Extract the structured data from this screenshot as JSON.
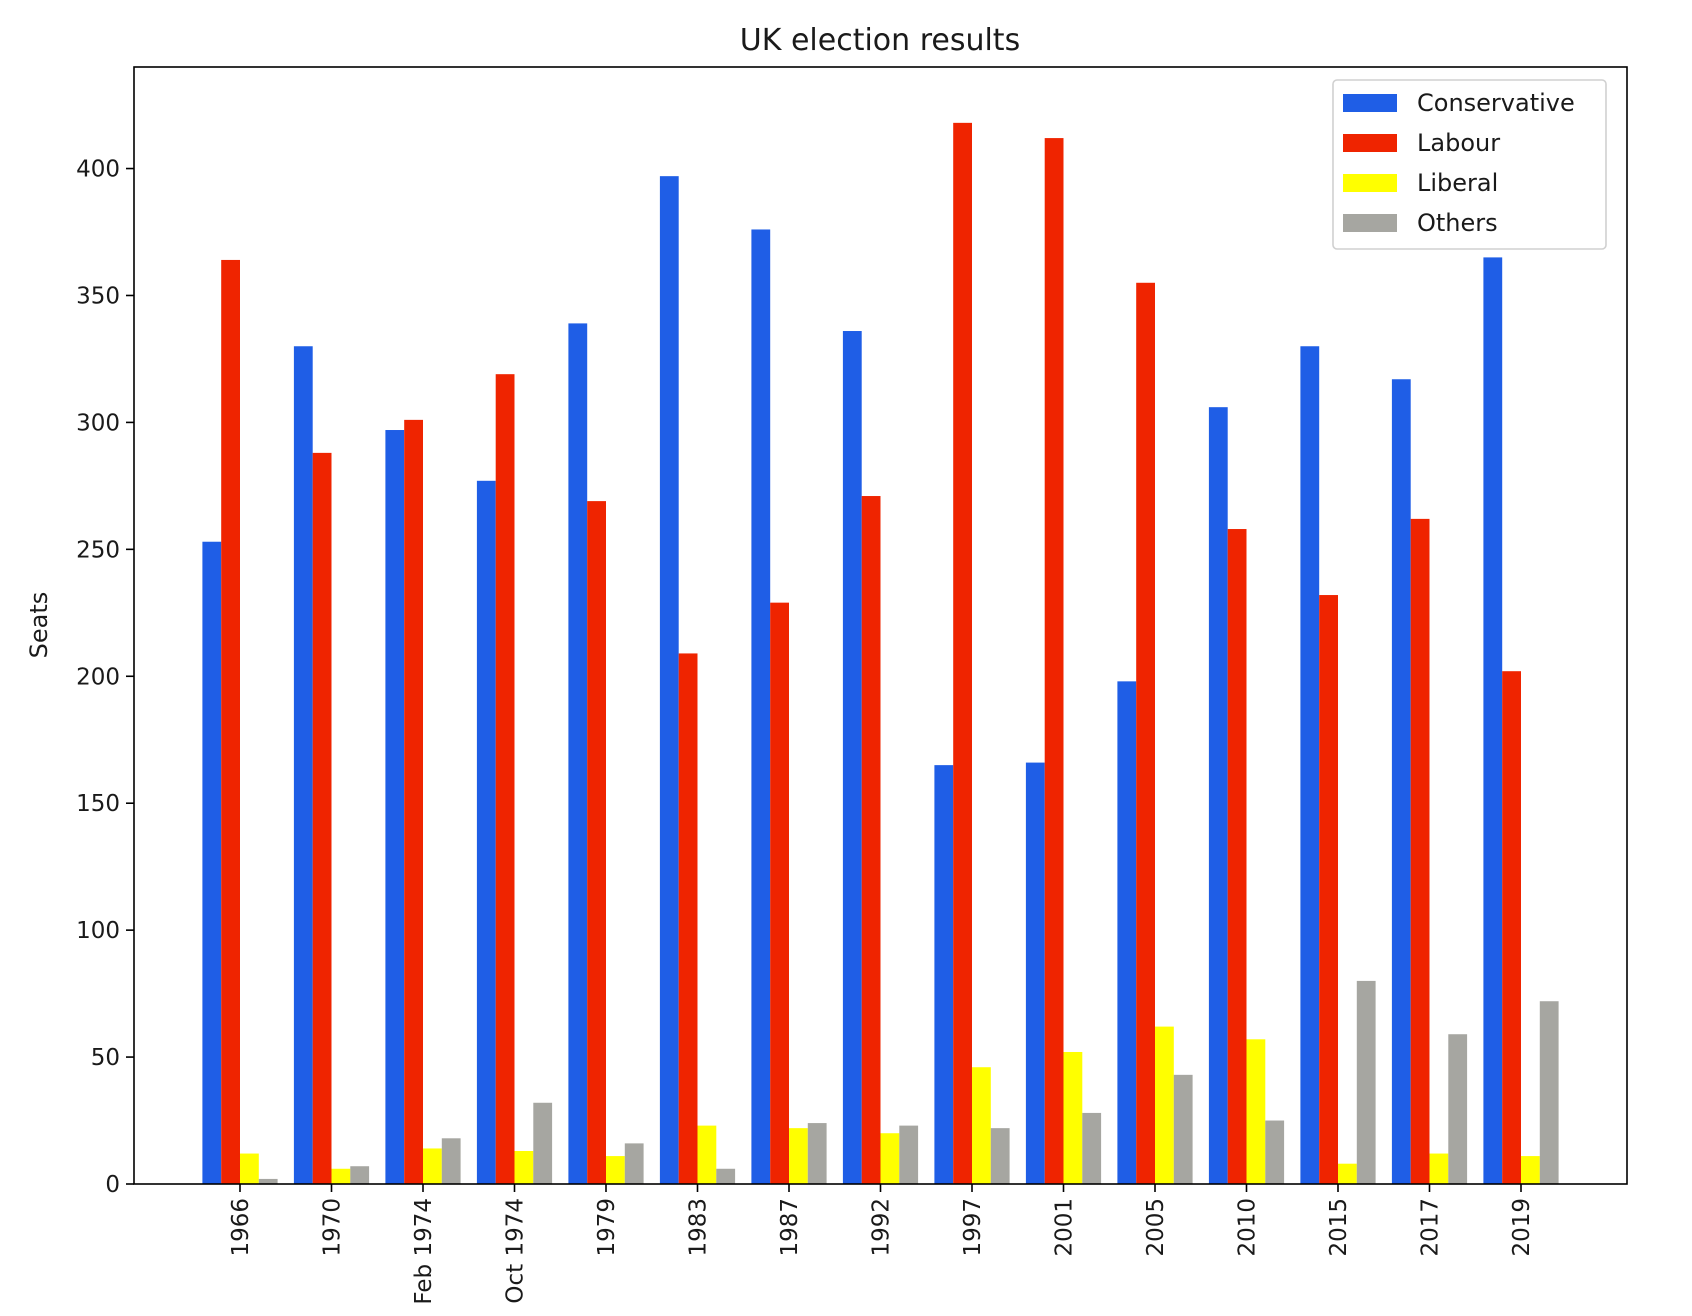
{
  "chart_data": {
    "type": "bar",
    "title": "UK election results",
    "xlabel": "",
    "ylabel": "Seats",
    "ylim": [
      0,
      440
    ],
    "yticks": [
      0,
      50,
      100,
      150,
      200,
      250,
      300,
      350,
      400
    ],
    "grid": false,
    "legend_position": "top-right",
    "categories": [
      "1966",
      "1970",
      "Feb 1974",
      "Oct 1974",
      "1979",
      "1983",
      "1987",
      "1992",
      "1997",
      "2001",
      "2005",
      "2010",
      "2015",
      "2017",
      "2019"
    ],
    "series": [
      {
        "name": "Conservative",
        "color": "#1f5ee6",
        "values": [
          253,
          330,
          297,
          277,
          339,
          397,
          376,
          336,
          165,
          166,
          198,
          306,
          330,
          317,
          365
        ]
      },
      {
        "name": "Labour",
        "color": "#ef2400",
        "values": [
          364,
          288,
          301,
          319,
          269,
          209,
          229,
          271,
          418,
          412,
          355,
          258,
          232,
          262,
          202
        ]
      },
      {
        "name": "Liberal",
        "color": "#ffff00",
        "values": [
          12,
          6,
          14,
          13,
          11,
          23,
          22,
          20,
          46,
          52,
          62,
          57,
          8,
          12,
          11
        ]
      },
      {
        "name": "Others",
        "color": "#a6a6a1",
        "values": [
          2,
          7,
          18,
          32,
          16,
          6,
          24,
          23,
          22,
          28,
          43,
          25,
          80,
          59,
          72
        ]
      }
    ]
  }
}
